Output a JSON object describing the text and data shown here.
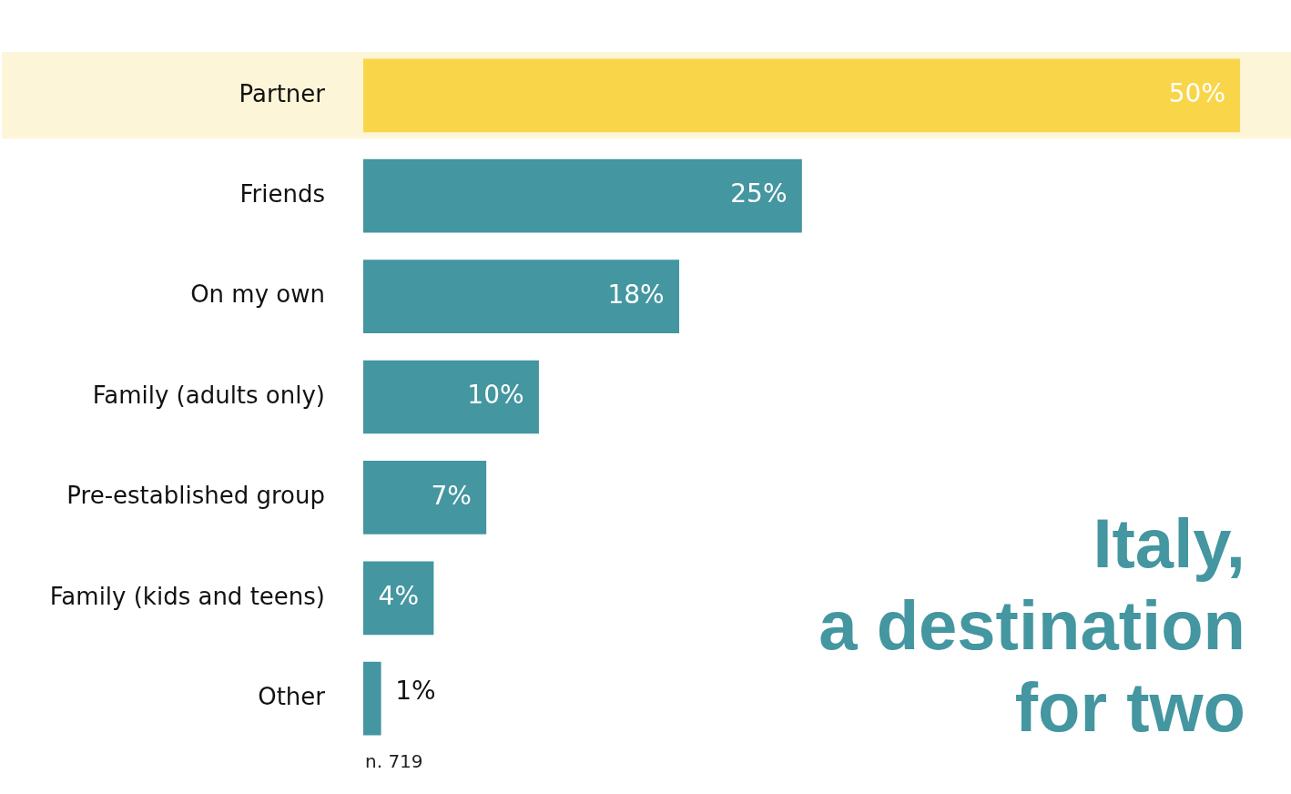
{
  "chart_data": {
    "type": "bar",
    "orientation": "horizontal",
    "title": "Italy,\na destination\nfor two",
    "categories": [
      "Partner",
      "Friends",
      "On my own",
      "Family (adults only)",
      "Pre-established group",
      "Family (kids and teens)",
      "Other"
    ],
    "values": [
      50,
      25,
      18,
      10,
      7,
      4,
      1
    ],
    "colors": [
      "#f9d54a",
      "#4496a0",
      "#4496a0",
      "#4496a0",
      "#4496a0",
      "#4496a0",
      "#4496a0"
    ],
    "value_labels": [
      "50%",
      "25%",
      "18%",
      "10%",
      "7%",
      "4%",
      "1%"
    ],
    "bands": [
      {
        "axis": "y",
        "from": "Partner",
        "to": "Partner",
        "color": "#fdf5d8"
      }
    ],
    "annotations": [
      "n. 719"
    ],
    "legend": false
  }
}
